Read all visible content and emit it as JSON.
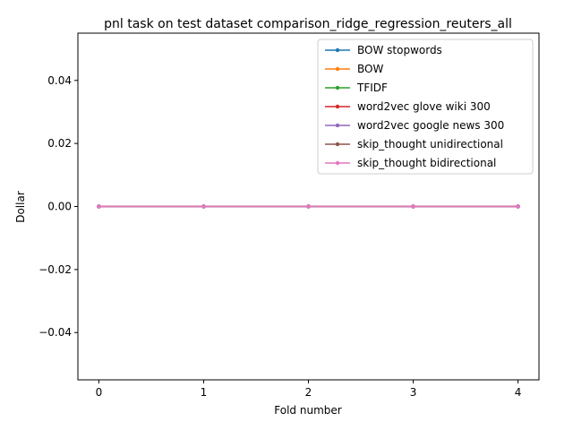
{
  "chart_data": {
    "type": "line",
    "title": "pnl task on test dataset comparison_ridge_regression_reuters_all",
    "xlabel": "Fold number",
    "ylabel": "Dollar",
    "x": [
      0,
      1,
      2,
      3,
      4
    ],
    "xlim": [
      -0.2,
      4.2
    ],
    "ylim": [
      -0.055,
      0.055
    ],
    "xticks": [
      0,
      1,
      2,
      3,
      4
    ],
    "xtick_labels": [
      "0",
      "1",
      "2",
      "3",
      "4"
    ],
    "yticks": [
      -0.04,
      -0.02,
      0.0,
      0.02,
      0.04
    ],
    "ytick_labels": [
      "−0.04",
      "−0.02",
      "0.00",
      "0.02",
      "0.04"
    ],
    "grid": false,
    "legend_position": "top-right",
    "series": [
      {
        "name": "BOW stopwords",
        "color": "#1f77b4",
        "values": [
          0,
          0,
          0,
          0,
          0
        ]
      },
      {
        "name": "BOW",
        "color": "#ff7f0e",
        "values": [
          0,
          0,
          0,
          0,
          0
        ]
      },
      {
        "name": "TFIDF",
        "color": "#2ca02c",
        "values": [
          0,
          0,
          0,
          0,
          0
        ]
      },
      {
        "name": "word2vec glove wiki 300",
        "color": "#d62728",
        "values": [
          0,
          0,
          0,
          0,
          0
        ]
      },
      {
        "name": "word2vec google news 300",
        "color": "#9467bd",
        "values": [
          0,
          0,
          0,
          0,
          0
        ]
      },
      {
        "name": "skip_thought unidirectional",
        "color": "#8c564b",
        "values": [
          0,
          0,
          0,
          0,
          0
        ]
      },
      {
        "name": "skip_thought bidirectional",
        "color": "#e377c2",
        "values": [
          0,
          0,
          0,
          0,
          0
        ]
      }
    ]
  }
}
